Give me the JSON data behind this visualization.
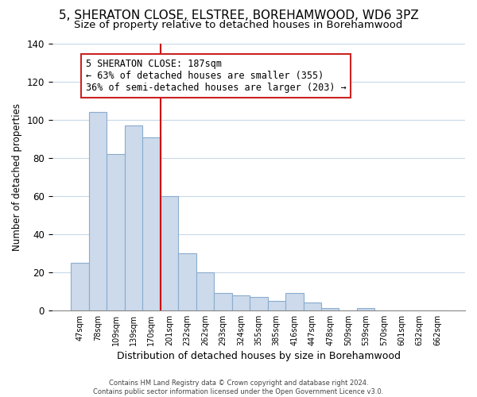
{
  "title": "5, SHERATON CLOSE, ELSTREE, BOREHAMWOOD, WD6 3PZ",
  "subtitle": "Size of property relative to detached houses in Borehamwood",
  "xlabel": "Distribution of detached houses by size in Borehamwood",
  "ylabel": "Number of detached properties",
  "bar_labels": [
    "47sqm",
    "78sqm",
    "109sqm",
    "139sqm",
    "170sqm",
    "201sqm",
    "232sqm",
    "262sqm",
    "293sqm",
    "324sqm",
    "355sqm",
    "385sqm",
    "416sqm",
    "447sqm",
    "478sqm",
    "509sqm",
    "539sqm",
    "570sqm",
    "601sqm",
    "632sqm",
    "662sqm"
  ],
  "bar_values": [
    25,
    104,
    82,
    97,
    91,
    60,
    30,
    20,
    9,
    8,
    7,
    5,
    9,
    4,
    1,
    0,
    1,
    0,
    0,
    0,
    0
  ],
  "bar_color": "#ccdaeb",
  "bar_edge_color": "#8aadce",
  "vline_color": "#cc0000",
  "annotation_text": "5 SHERATON CLOSE: 187sqm\n← 63% of detached houses are smaller (355)\n36% of semi-detached houses are larger (203) →",
  "annotation_box_facecolor": "#ffffff",
  "annotation_box_edgecolor": "#cc2222",
  "ylim": [
    0,
    140
  ],
  "yticks": [
    0,
    20,
    40,
    60,
    80,
    100,
    120,
    140
  ],
  "footer_text": "Contains HM Land Registry data © Crown copyright and database right 2024.\nContains public sector information licensed under the Open Government Licence v3.0.",
  "background_color": "#ffffff",
  "grid_color": "#c8d8e8",
  "title_fontsize": 11,
  "subtitle_fontsize": 9.5
}
